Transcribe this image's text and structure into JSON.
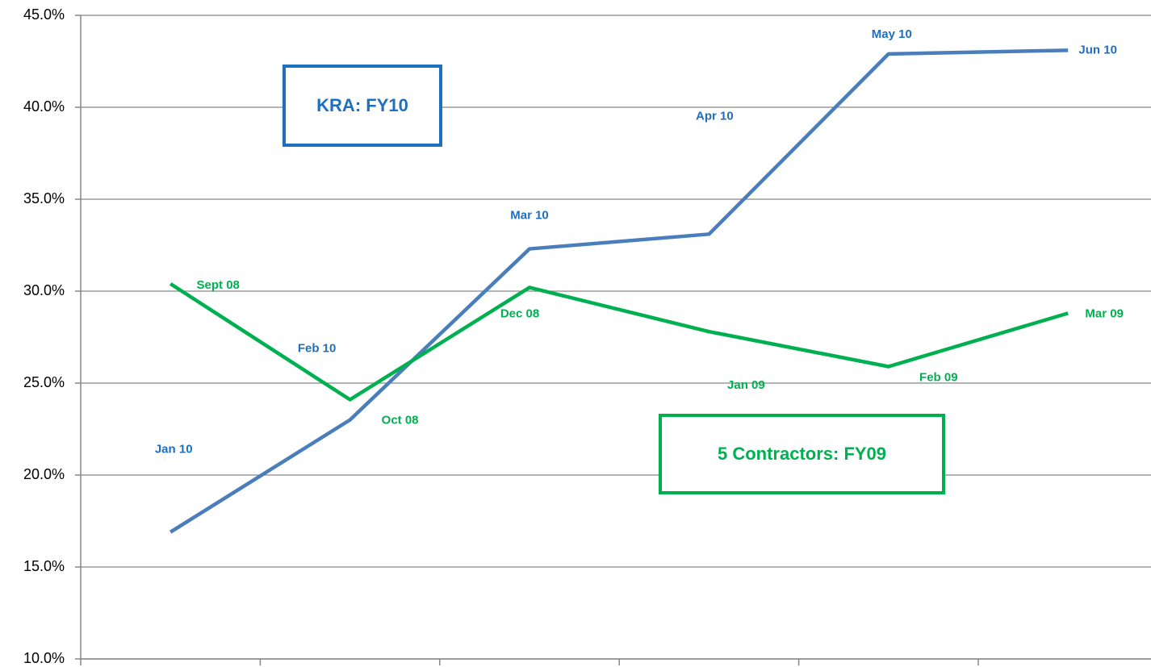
{
  "chart_data": {
    "type": "line",
    "categories": [
      null,
      null,
      null,
      null,
      null,
      null
    ],
    "series": [
      {
        "color": "#4a7ebb",
        "label_color": "#1f6fbf",
        "values": [
          16.9,
          23.0,
          32.3,
          33.1,
          42.9,
          43.1
        ],
        "labels": [
          "Jan 10",
          "Feb 10",
          "Mar 10",
          "Apr 10",
          "May 10",
          "Jun 10"
        ]
      },
      {
        "color": "#00b050",
        "label_color": "#00b050",
        "values": [
          30.4,
          24.1,
          30.2,
          27.8,
          25.9,
          28.8
        ],
        "labels": [
          "Sept 08",
          "Oct 08",
          "Dec 08",
          "Jan 09",
          "Feb 09",
          "Mar 09"
        ]
      }
    ],
    "annotations": [
      {
        "text": "KRA: FY10",
        "color": "#1f6fbf"
      },
      {
        "text": "5 Contractors: FY09",
        "color": "#00b050"
      }
    ],
    "ylim": [
      10,
      45
    ],
    "yticks": [
      {
        "value": 10,
        "label": "10.0%"
      },
      {
        "value": 15,
        "label": "15.0%"
      },
      {
        "value": 20,
        "label": "20.0%"
      },
      {
        "value": 25,
        "label": "25.0%"
      },
      {
        "value": 30,
        "label": "30.0%"
      },
      {
        "value": 35,
        "label": "35.0%"
      },
      {
        "value": 40,
        "label": "40.0%"
      },
      {
        "value": 45,
        "label": "45.0%"
      }
    ],
    "grid": true
  }
}
